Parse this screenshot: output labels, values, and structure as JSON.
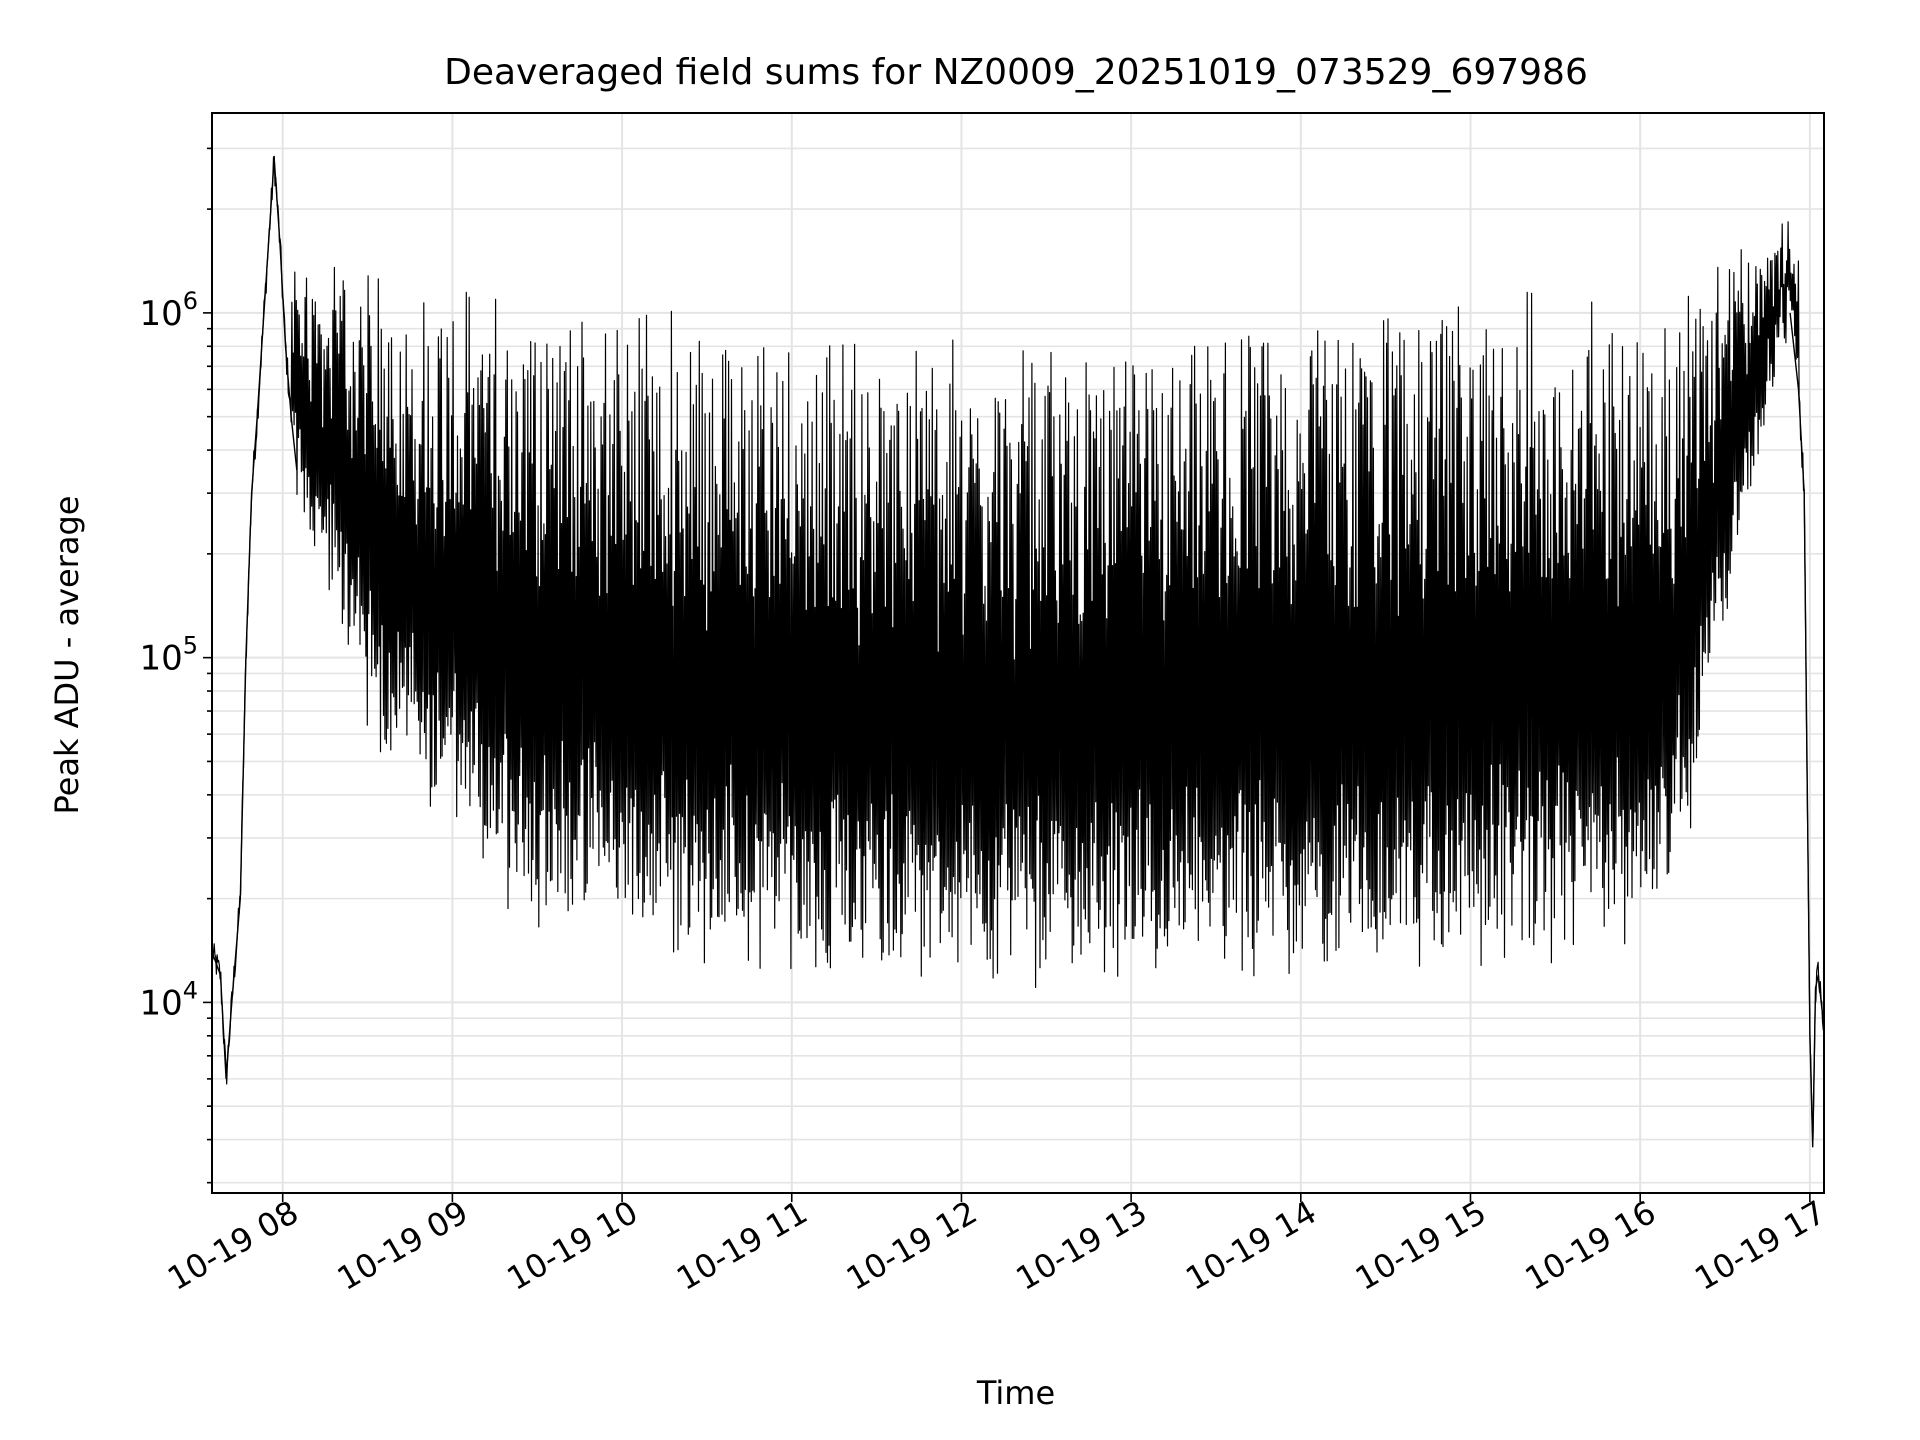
{
  "chart_data": {
    "type": "line",
    "title": "Deaveraged field sums for NZ0009_20251019_073529_697986",
    "xlabel": "Time",
    "ylabel": "Peak ADU - average",
    "x_ticks": [
      "10-19 08",
      "10-19 09",
      "10-19 10",
      "10-19 11",
      "10-19 12",
      "10-19 13",
      "10-19 14",
      "10-19 15",
      "10-19 16",
      "10-19 17"
    ],
    "y_ticks": [
      {
        "base": "10",
        "exp": "4",
        "value": 10000
      },
      {
        "base": "10",
        "exp": "5",
        "value": 100000
      },
      {
        "base": "10",
        "exp": "6",
        "value": 1000000
      }
    ],
    "x_range": [
      "2025-10-19 07:35",
      "2025-10-19 17:05"
    ],
    "ylim": [
      2800,
      3800000
    ],
    "y_scale": "log",
    "grid": true,
    "series": [
      {
        "color": "#000000",
        "points": [
          [
            "2025-10-19 07:35",
            14000
          ],
          [
            "2025-10-19 07:38",
            12000
          ],
          [
            "2025-10-19 07:40",
            6000
          ],
          [
            "2025-10-19 07:42",
            10000
          ],
          [
            "2025-10-19 07:45",
            20000
          ],
          [
            "2025-10-19 07:47",
            100000
          ],
          [
            "2025-10-19 07:49",
            300000
          ],
          [
            "2025-10-19 07:51",
            500000
          ],
          [
            "2025-10-19 07:53",
            900000
          ],
          [
            "2025-10-19 07:55",
            1600000
          ],
          [
            "2025-10-19 07:57",
            2800000
          ],
          [
            "2025-10-19 07:59",
            1600000
          ],
          [
            "2025-10-19 08:01",
            800000
          ],
          [
            "2025-10-19 08:03",
            500000
          ],
          [
            "2025-10-19 08:05",
            350000
          ],
          [
            "2025-10-19 08:10",
            250000
          ],
          [
            "2025-10-19 08:20",
            150000
          ],
          [
            "2025-10-19 08:30",
            80000
          ],
          [
            "2025-10-19 08:40",
            55000
          ],
          [
            "2025-10-19 08:50",
            45000
          ],
          [
            "2025-10-19 09:00",
            38000
          ],
          [
            "2025-10-19 09:15",
            26000
          ],
          [
            "2025-10-19 09:30",
            22000
          ],
          [
            "2025-10-19 09:45",
            20000
          ],
          [
            "2025-10-19 10:00",
            18000
          ],
          [
            "2025-10-19 10:30",
            16000
          ],
          [
            "2025-10-19 11:00",
            15000
          ],
          [
            "2025-10-19 11:30",
            14500
          ],
          [
            "2025-10-19 12:00",
            14000
          ],
          [
            "2025-10-19 12:30",
            14000
          ],
          [
            "2025-10-19 13:00",
            14000
          ],
          [
            "2025-10-19 13:30",
            14500
          ],
          [
            "2025-10-19 14:00",
            15000
          ],
          [
            "2025-10-19 14:30",
            15000
          ],
          [
            "2025-10-19 15:00",
            15500
          ],
          [
            "2025-10-19 15:30",
            16000
          ],
          [
            "2025-10-19 16:00",
            18000
          ],
          [
            "2025-10-19 16:15",
            30000
          ],
          [
            "2025-10-19 16:30",
            150000
          ],
          [
            "2025-10-19 16:40",
            400000
          ],
          [
            "2025-10-19 16:50",
            900000
          ],
          [
            "2025-10-19 16:53",
            1000000
          ],
          [
            "2025-10-19 16:56",
            600000
          ],
          [
            "2025-10-19 16:58",
            300000
          ],
          [
            "2025-10-19 17:00",
            8000
          ],
          [
            "2025-10-19 17:01",
            3800
          ],
          [
            "2025-10-19 17:02",
            11000
          ],
          [
            "2025-10-19 17:03",
            12000
          ],
          [
            "2025-10-19 17:04",
            10000
          ],
          [
            "2025-10-19 17:05",
            8500
          ]
        ]
      }
    ]
  }
}
